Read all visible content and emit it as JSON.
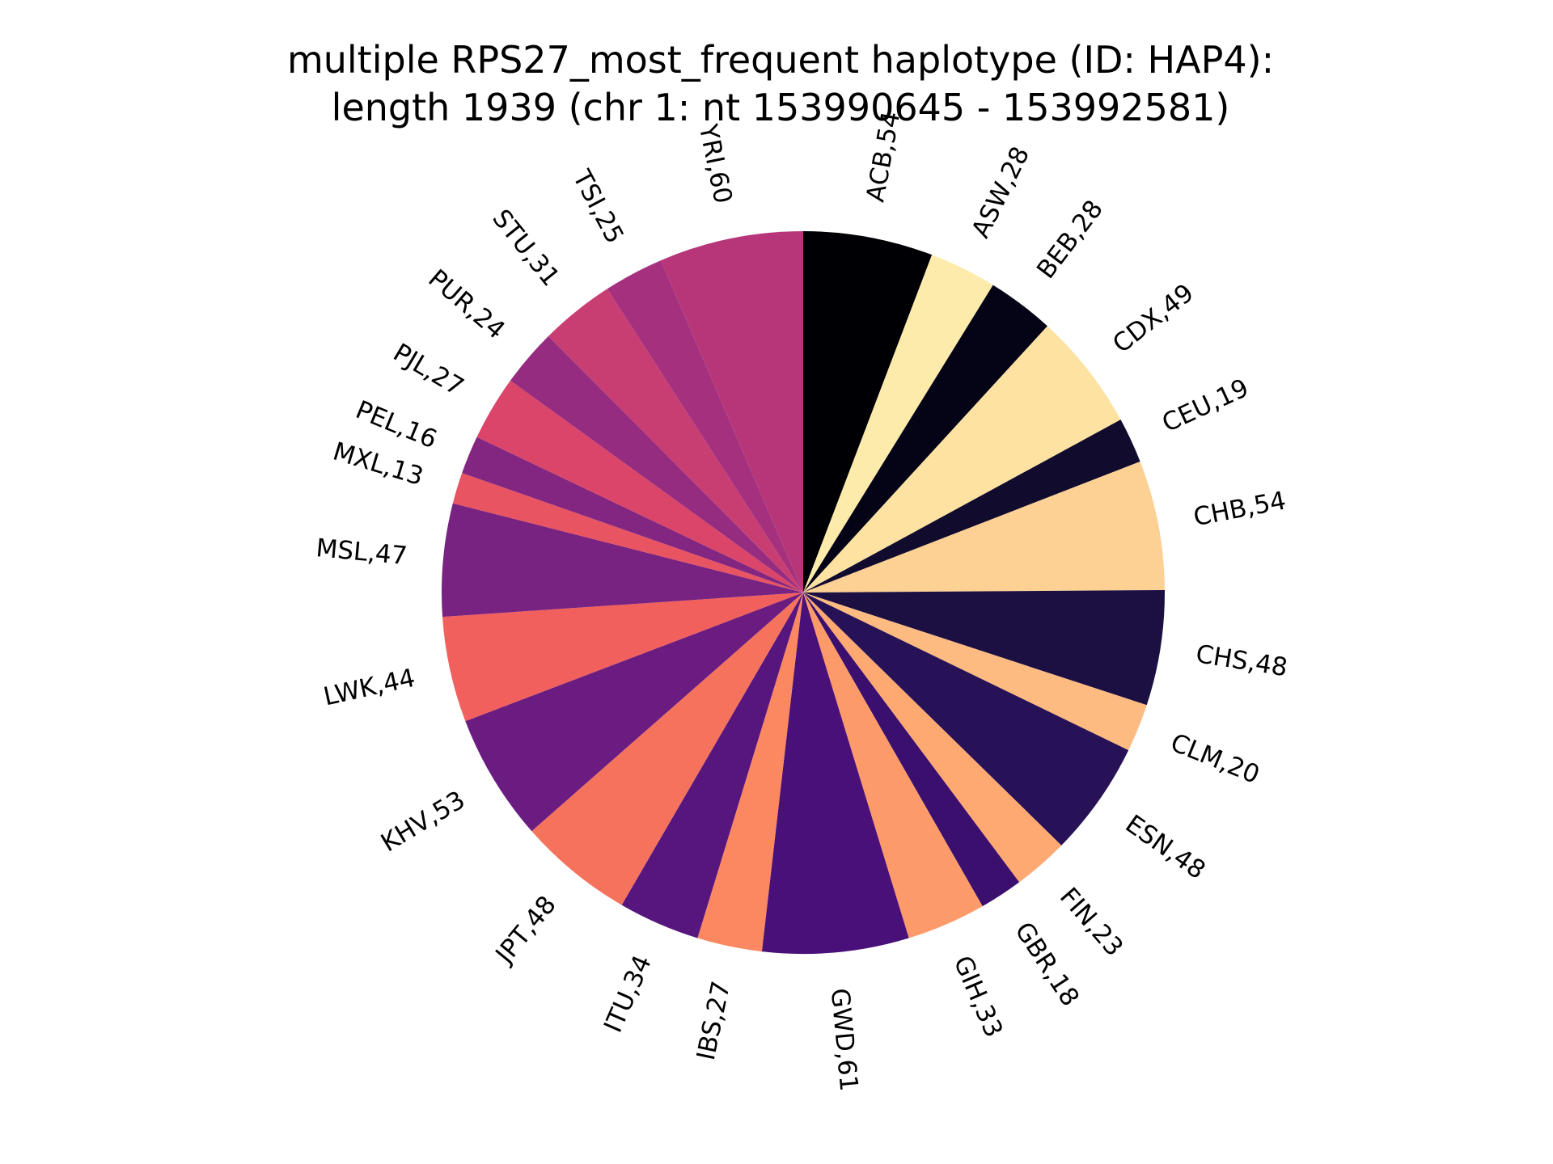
{
  "chart_data": {
    "type": "pie",
    "title_lines": [
      "multiple RPS27_most_frequent haplotype (ID: HAP4):",
      "length 1939 (chr 1: nt 153990645 - 153992581)"
    ],
    "start_angle": "12 o'clock",
    "direction": "clockwise",
    "slices": [
      {
        "label": "ACB,54",
        "value": 54,
        "color": "#000004"
      },
      {
        "label": "ASW,28",
        "value": 28,
        "color": "#fcebaa"
      },
      {
        "label": "BEB,28",
        "value": 28,
        "color": "#050417"
      },
      {
        "label": "CDX,49",
        "value": 49,
        "color": "#fde2a2"
      },
      {
        "label": "CEU,19",
        "value": 19,
        "color": "#110b2d"
      },
      {
        "label": "CHB,54",
        "value": 54,
        "color": "#fdd093"
      },
      {
        "label": "CHS,48",
        "value": 48,
        "color": "#1c1042"
      },
      {
        "label": "CLM,20",
        "value": 20,
        "color": "#febb81"
      },
      {
        "label": "ESN,48",
        "value": 48,
        "color": "#271258"
      },
      {
        "label": "FIN,23",
        "value": 23,
        "color": "#fea872"
      },
      {
        "label": "GBR,18",
        "value": 18,
        "color": "#3a0f6e"
      },
      {
        "label": "GIH,33",
        "value": 33,
        "color": "#fd9a6a"
      },
      {
        "label": "GWD,61",
        "value": 61,
        "color": "#4a1079"
      },
      {
        "label": "IBS,27",
        "value": 27,
        "color": "#fb8861"
      },
      {
        "label": "ITU,34",
        "value": 34,
        "color": "#57157e"
      },
      {
        "label": "JPT,48",
        "value": 48,
        "color": "#f5735c"
      },
      {
        "label": "KHV,53",
        "value": 53,
        "color": "#6a1c81"
      },
      {
        "label": "LWK,44",
        "value": 44,
        "color": "#f1605d"
      },
      {
        "label": "MSL,47",
        "value": 47,
        "color": "#782281"
      },
      {
        "label": "MXL,13",
        "value": 13,
        "color": "#e85461"
      },
      {
        "label": "PEL,16",
        "value": 16,
        "color": "#832681"
      },
      {
        "label": "PJL,27",
        "value": 27,
        "color": "#da4569"
      },
      {
        "label": "PUR,24",
        "value": 24,
        "color": "#952c80"
      },
      {
        "label": "STU,31",
        "value": 31,
        "color": "#c83e73"
      },
      {
        "label": "TSI,25",
        "value": 25,
        "color": "#a5317e"
      },
      {
        "label": "YRI,60",
        "value": 60,
        "color": "#b63679"
      }
    ]
  }
}
